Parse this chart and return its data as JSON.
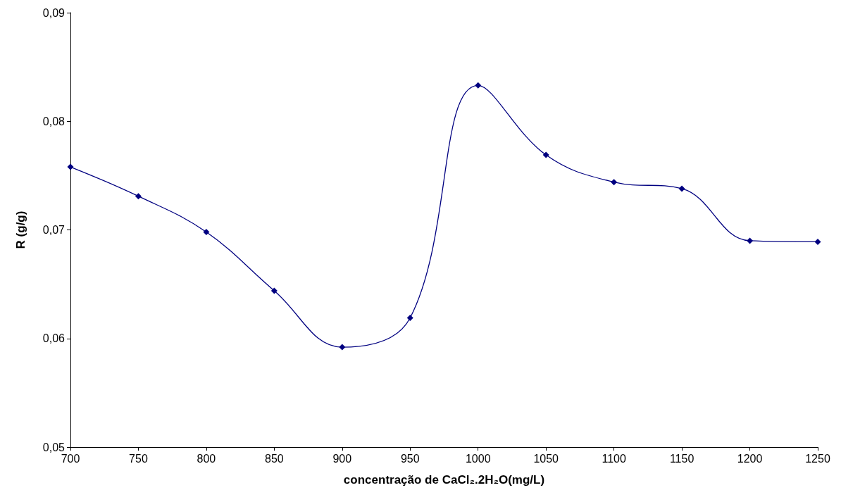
{
  "chart_data": {
    "type": "line",
    "xlabel": "concentração de CaCl₂.2H₂O(mg/L)",
    "ylabel": "R (g/g)",
    "x": [
      700,
      750,
      800,
      850,
      900,
      950,
      1000,
      1050,
      1100,
      1150,
      1200,
      1250
    ],
    "series": [
      {
        "color": "#000080",
        "values": [
          0.0758,
          0.0731,
          0.0698,
          0.0644,
          0.0592,
          0.0619,
          0.0833,
          0.0769,
          0.0744,
          0.0738,
          0.069,
          0.0689
        ]
      }
    ],
    "xlim": [
      700,
      1250
    ],
    "xticks": [
      700,
      750,
      800,
      850,
      900,
      950,
      1000,
      1050,
      1100,
      1150,
      1200,
      1250
    ],
    "ylim": [
      0.05,
      0.09
    ],
    "yticks": [
      {
        "value": 0.05,
        "label": "0,05"
      },
      {
        "value": 0.06,
        "label": "0,06"
      },
      {
        "value": 0.07,
        "label": "0,07"
      },
      {
        "value": 0.08,
        "label": "0,08"
      },
      {
        "value": 0.09,
        "label": "0,09"
      }
    ],
    "grid": false,
    "marker": "diamond",
    "line_style": "solid"
  }
}
